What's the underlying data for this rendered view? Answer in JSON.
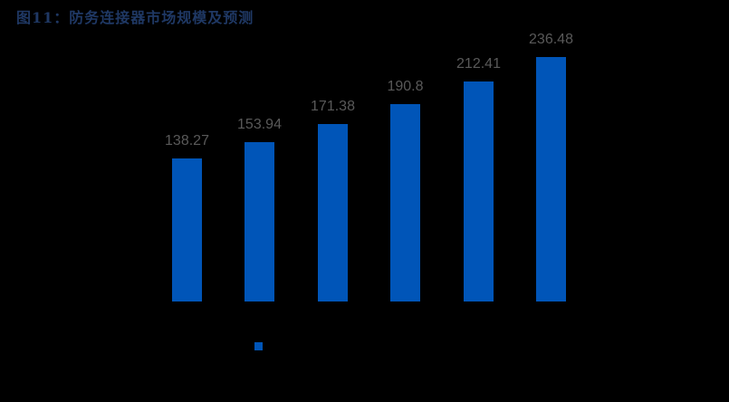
{
  "title": "图11：防务连接器市场规模及预测",
  "colors": {
    "bar": "#0055b8",
    "label": "#595959",
    "title": "#1f3864",
    "background": "#000000"
  },
  "chart_data": {
    "type": "bar",
    "title": "图11：防务连接器市场规模及预测",
    "categories": [
      "",
      "",
      "",
      "",
      "",
      ""
    ],
    "series": [
      {
        "name": "",
        "values": [
          138.27,
          153.94,
          171.38,
          190.8,
          212.41,
          236.48
        ]
      }
    ],
    "value_labels": [
      "138.27",
      "153.94",
      "171.38",
      "190.8",
      "212.41",
      "236.48"
    ],
    "xlabel": "",
    "ylabel": "",
    "grid": false,
    "legend_position": "bottom",
    "ylim": [
      0,
      250
    ]
  }
}
